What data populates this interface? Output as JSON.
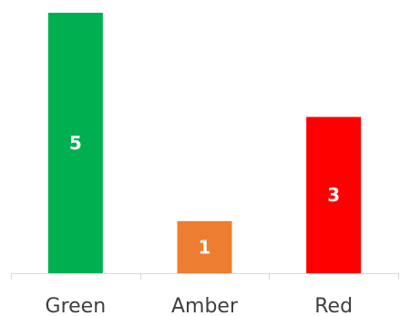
{
  "chart_data": {
    "type": "bar",
    "categories": [
      "Green",
      "Amber",
      "Red"
    ],
    "values": [
      5,
      1,
      3
    ],
    "colors": [
      "#00b050",
      "#ed7d31",
      "#ff0000"
    ],
    "ylim": [
      0,
      5
    ],
    "grid": false,
    "legend": "none",
    "data_labels": true,
    "title": "",
    "xlabel": "",
    "ylabel": ""
  }
}
